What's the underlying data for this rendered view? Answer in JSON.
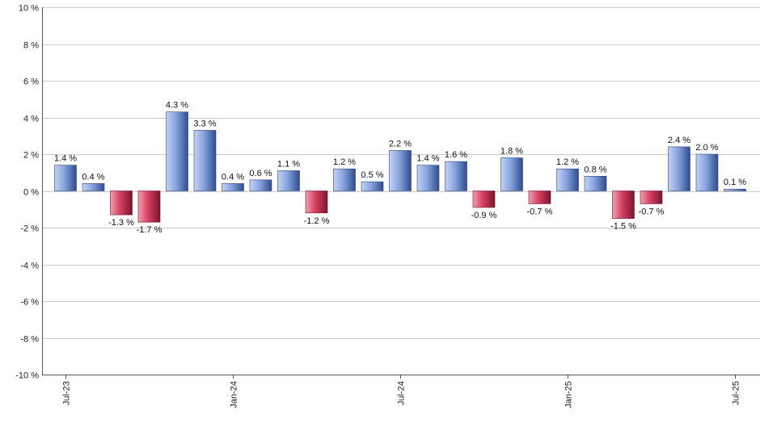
{
  "chart_data": {
    "type": "bar",
    "title": "",
    "xlabel": "",
    "ylabel": "",
    "ylim": [
      -10,
      10
    ],
    "y_ticks": [
      -10,
      -8,
      -6,
      -4,
      -2,
      0,
      2,
      4,
      6,
      8,
      10
    ],
    "y_tick_suffix": " %",
    "grid": true,
    "legend": "none",
    "categories": [
      "Jul-23",
      "Aug-23",
      "Sep-23",
      "Oct-23",
      "Nov-23",
      "Dec-23",
      "Jan-24",
      "Feb-24",
      "Mar-24",
      "Apr-24",
      "May-24",
      "Jun-24",
      "Jul-24",
      "Aug-24",
      "Sep-24",
      "Oct-24",
      "Nov-24",
      "Dec-24",
      "Jan-25",
      "Feb-25",
      "Mar-25",
      "Apr-25",
      "May-25",
      "Jun-25",
      "Jul-25"
    ],
    "x_tick_labels": [
      {
        "category": "Jul-23",
        "label": "Jul-23"
      },
      {
        "category": "Jan-24",
        "label": "Jan-24"
      },
      {
        "category": "Jul-24",
        "label": "Jul-24"
      },
      {
        "category": "Jan-25",
        "label": "Jan-25"
      },
      {
        "category": "Jul-25",
        "label": "Jul-25"
      }
    ],
    "values": [
      1.4,
      0.4,
      -1.3,
      -1.7,
      4.3,
      3.3,
      0.4,
      0.6,
      1.1,
      -1.2,
      1.2,
      0.5,
      2.2,
      1.4,
      1.6,
      -0.9,
      1.8,
      -0.7,
      1.2,
      0.8,
      -1.5,
      -0.7,
      2.4,
      2.0,
      0.1
    ],
    "data_labels": [
      "1.4 %",
      "0.4 %",
      "-1.3 %",
      "-1.7 %",
      "4.3 %",
      "3.3 %",
      "0.4 %",
      "0.6 %",
      "1.1 %",
      "-1.2 %",
      "1.2 %",
      "0.5 %",
      "2.2 %",
      "1.4 %",
      "1.6 %",
      "-0.9 %",
      "1.8 %",
      "-0.7 %",
      "1.2 %",
      "0.8 %",
      "-1.5 %",
      "-0.7 %",
      "2.4 %",
      "2.0 %",
      "0.1 %"
    ],
    "colors": {
      "positive": "#7f9fe0",
      "negative": "#d23c5c",
      "grid": "#cccccc",
      "axis": "#555555"
    }
  }
}
